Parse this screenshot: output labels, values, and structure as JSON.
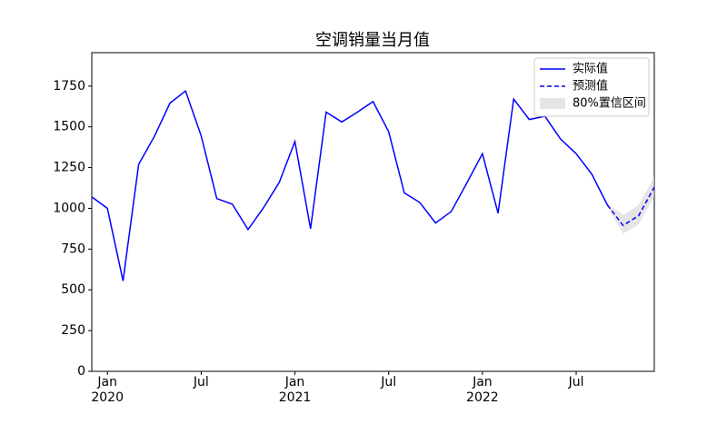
{
  "chart_data": {
    "type": "line",
    "title": "空调销量当月值",
    "xlim": [
      "2019-12",
      "2022-12"
    ],
    "xticks": [
      {
        "value": "2020-01",
        "label": "Jan\n2020"
      },
      {
        "value": "2020-07",
        "label": "Jul"
      },
      {
        "value": "2021-01",
        "label": "Jan\n2021"
      },
      {
        "value": "2021-07",
        "label": "Jul"
      },
      {
        "value": "2022-01",
        "label": "Jan\n2022"
      },
      {
        "value": "2022-07",
        "label": "Jul"
      }
    ],
    "ylim": [
      0,
      1955
    ],
    "yticks": [
      0,
      250,
      500,
      750,
      1000,
      1250,
      1500,
      1750
    ],
    "legend": "upper right",
    "series": [
      {
        "name": "实际值",
        "color": "#0000ff",
        "style": "solid",
        "x": [
          "2019-12",
          "2020-01",
          "2020-02",
          "2020-03",
          "2020-04",
          "2020-05",
          "2020-06",
          "2020-07",
          "2020-08",
          "2020-09",
          "2020-10",
          "2020-11",
          "2020-12",
          "2021-01",
          "2021-02",
          "2021-03",
          "2021-04",
          "2021-05",
          "2021-06",
          "2021-07",
          "2021-08",
          "2021-09",
          "2021-10",
          "2021-11",
          "2021-12",
          "2022-01",
          "2022-02",
          "2022-03",
          "2022-04",
          "2022-05",
          "2022-06",
          "2022-07",
          "2022-08",
          "2022-09"
        ],
        "values": [
          1070,
          1000,
          555,
          1270,
          1440,
          1645,
          1720,
          1445,
          1060,
          1025,
          870,
          1005,
          1160,
          1410,
          875,
          1590,
          1530,
          1590,
          1655,
          1470,
          1095,
          1035,
          910,
          980,
          1155,
          1335,
          970,
          1670,
          1545,
          1565,
          1425,
          1335,
          1210,
          1020
        ]
      },
      {
        "name": "预测值",
        "color": "#0000ff",
        "style": "dashed",
        "x": [
          "2022-09",
          "2022-10",
          "2022-11",
          "2022-12"
        ],
        "values": [
          1020,
          895,
          955,
          1130
        ]
      }
    ],
    "interval": {
      "name": "80%置信区间",
      "color": "#d3d3d3",
      "x": [
        "2022-09",
        "2022-10",
        "2022-11",
        "2022-12"
      ],
      "lower": [
        1010,
        845,
        900,
        1070
      ],
      "upper": [
        1030,
        960,
        1020,
        1195
      ]
    }
  }
}
